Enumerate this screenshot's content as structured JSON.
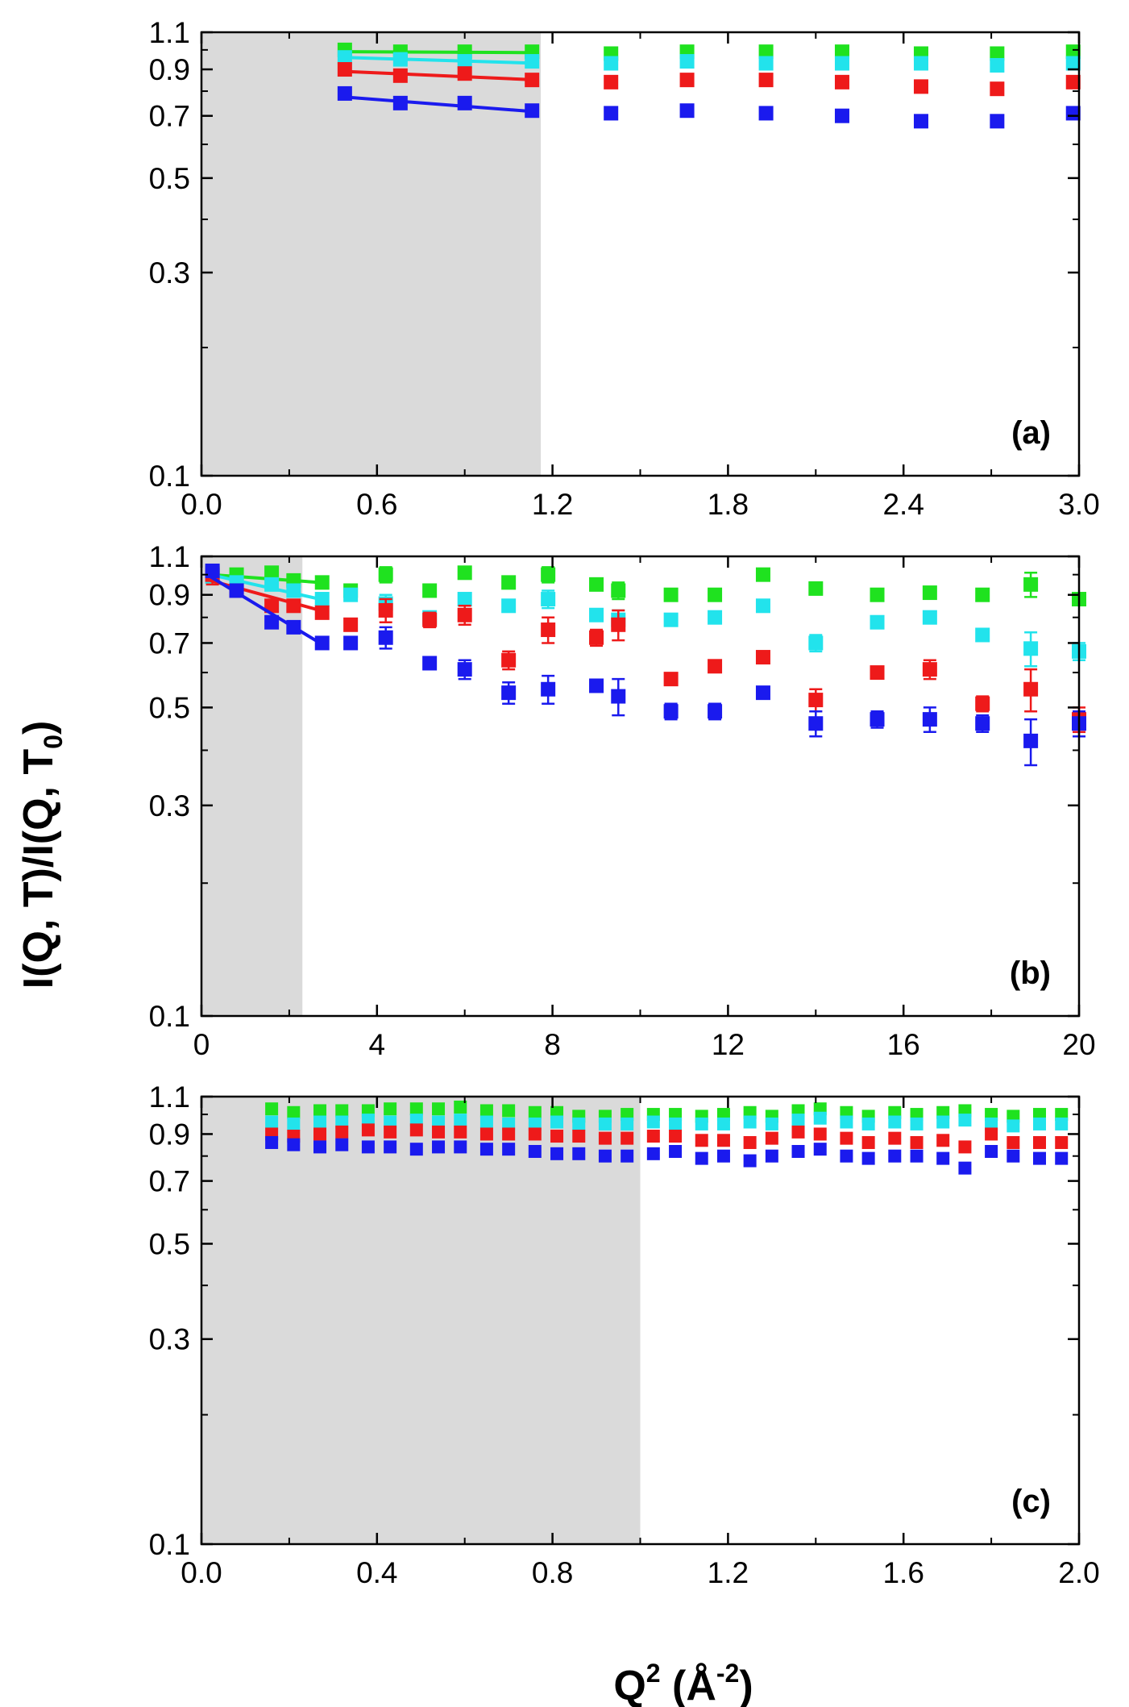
{
  "figure": {
    "ylabel": "I(Q, T)/I(Q, T",
    "ylabel_sub": "0",
    "ylabel_close": ")",
    "xlabel": "Q",
    "xlabel_sup": "2",
    "xlabel_unit_open": " (Å",
    "xlabel_unit_sup": "-2",
    "xlabel_unit_close": ")"
  },
  "colors": {
    "blue": "#1a1aee",
    "red": "#ee1a1a",
    "cyan": "#22e3ec",
    "green": "#1fe21f",
    "shade": "#dadada"
  },
  "chart_data": [
    {
      "type": "scatter",
      "panel_label": "(a)",
      "xlim": [
        0,
        3.0
      ],
      "ylim": [
        0.1,
        1.1
      ],
      "yscale": "log",
      "x_ticks": [
        "0.0",
        "0.6",
        "1.2",
        "1.8",
        "2.4",
        "3.0"
      ],
      "y_ticks": [
        "0.1",
        "0.3",
        "0.5",
        "0.7",
        "0.9",
        "1.1"
      ],
      "shaded_region": [
        0,
        1.16
      ],
      "x": [
        0.49,
        0.68,
        0.9,
        1.13,
        1.4,
        1.66,
        1.93,
        2.19,
        2.46,
        2.72,
        2.98
      ],
      "series": [
        {
          "name": "green",
          "color_key": "green",
          "values": [
            1.0,
            0.99,
            0.99,
            0.99,
            0.98,
            0.99,
            0.99,
            0.99,
            0.98,
            0.98,
            0.99
          ],
          "errors": [
            0.01,
            0.01,
            0.01,
            0.01,
            0.01,
            0.01,
            0.01,
            0.01,
            0.01,
            0.01,
            0.01
          ],
          "fit": [
            [
              0.49,
              0.99
            ],
            [
              1.15,
              0.985
            ]
          ]
        },
        {
          "name": "cyan",
          "color_key": "cyan",
          "values": [
            0.96,
            0.95,
            0.94,
            0.94,
            0.93,
            0.94,
            0.93,
            0.93,
            0.93,
            0.92,
            0.93
          ],
          "errors": [
            0.01,
            0.01,
            0.01,
            0.01,
            0.01,
            0.01,
            0.01,
            0.01,
            0.01,
            0.01,
            0.01
          ],
          "fit": [
            [
              0.49,
              0.96
            ],
            [
              1.15,
              0.93
            ]
          ]
        },
        {
          "name": "red",
          "color_key": "red",
          "values": [
            0.9,
            0.87,
            0.88,
            0.85,
            0.84,
            0.85,
            0.85,
            0.84,
            0.82,
            0.81,
            0.84
          ],
          "errors": [
            0.015,
            0.015,
            0.015,
            0.015,
            0.01,
            0.01,
            0.01,
            0.01,
            0.01,
            0.01,
            0.01
          ],
          "fit": [
            [
              0.49,
              0.89
            ],
            [
              1.15,
              0.85
            ]
          ]
        },
        {
          "name": "blue",
          "color_key": "blue",
          "values": [
            0.79,
            0.75,
            0.75,
            0.72,
            0.71,
            0.72,
            0.71,
            0.7,
            0.68,
            0.68,
            0.71
          ],
          "errors": [
            0.015,
            0.015,
            0.015,
            0.015,
            0.01,
            0.01,
            0.01,
            0.01,
            0.01,
            0.01,
            0.01
          ],
          "fit": [
            [
              0.49,
              0.775
            ],
            [
              1.15,
              0.715
            ]
          ]
        }
      ]
    },
    {
      "type": "scatter",
      "panel_label": "(b)",
      "xlim": [
        0,
        20
      ],
      "ylim": [
        0.1,
        1.1
      ],
      "yscale": "log",
      "x_ticks": [
        "0",
        "4",
        "8",
        "12",
        "16",
        "20"
      ],
      "y_ticks": [
        "0.1",
        "0.3",
        "0.5",
        "0.7",
        "0.9",
        "1.1"
      ],
      "shaded_region": [
        0,
        2.3
      ],
      "x": [
        0.25,
        0.8,
        1.6,
        2.1,
        2.75,
        3.4,
        4.2,
        5.2,
        6.0,
        7.0,
        7.9,
        9.0,
        9.5,
        10.7,
        11.7,
        12.8,
        14.0,
        15.4,
        16.6,
        17.8,
        18.9,
        20.0
      ],
      "series": [
        {
          "name": "green",
          "color_key": "green",
          "values": [
            1.01,
            1.0,
            1.01,
            0.97,
            0.96,
            0.92,
            1.0,
            0.92,
            1.01,
            0.96,
            1.0,
            0.95,
            0.92,
            0.9,
            0.9,
            1.0,
            0.93,
            0.9,
            0.91,
            0.9,
            0.95,
            0.88
          ],
          "errors": [
            0.03,
            0.02,
            0.02,
            0.02,
            0.02,
            0.02,
            0.04,
            0.02,
            0.03,
            0.02,
            0.04,
            0.02,
            0.04,
            0.02,
            0.02,
            0.02,
            0.03,
            0.02,
            0.03,
            0.02,
            0.06,
            0.03
          ],
          "fit": [
            [
              0.2,
              1.0
            ],
            [
              2.7,
              0.96
            ]
          ]
        },
        {
          "name": "cyan",
          "color_key": "cyan",
          "values": [
            0.99,
            0.96,
            0.95,
            0.92,
            0.88,
            0.9,
            0.86,
            0.8,
            0.88,
            0.85,
            0.88,
            0.81,
            0.79,
            0.79,
            0.8,
            0.85,
            0.7,
            0.78,
            0.8,
            0.73,
            0.68,
            0.67
          ],
          "errors": [
            0.03,
            0.02,
            0.02,
            0.02,
            0.02,
            0.02,
            0.04,
            0.02,
            0.03,
            0.02,
            0.04,
            0.02,
            0.04,
            0.02,
            0.02,
            0.02,
            0.03,
            0.02,
            0.03,
            0.02,
            0.06,
            0.03
          ],
          "fit": [
            [
              0.2,
              1.0
            ],
            [
              2.7,
              0.88
            ]
          ]
        },
        {
          "name": "red",
          "color_key": "red",
          "values": [
            1.0,
            0.92,
            0.85,
            0.85,
            0.82,
            0.77,
            0.83,
            0.79,
            0.81,
            0.64,
            0.75,
            0.72,
            0.77,
            0.58,
            0.62,
            0.65,
            0.52,
            0.6,
            0.61,
            0.51,
            0.55,
            0.47
          ],
          "errors": [
            0.05,
            0.03,
            0.03,
            0.02,
            0.02,
            0.02,
            0.05,
            0.03,
            0.04,
            0.03,
            0.05,
            0.03,
            0.06,
            0.02,
            0.02,
            0.02,
            0.03,
            0.02,
            0.03,
            0.02,
            0.06,
            0.03
          ],
          "fit": [
            [
              0.2,
              0.97
            ],
            [
              2.7,
              0.83
            ]
          ]
        },
        {
          "name": "blue",
          "color_key": "blue",
          "values": [
            1.02,
            0.92,
            0.78,
            0.76,
            0.7,
            0.7,
            0.72,
            0.63,
            0.61,
            0.54,
            0.55,
            0.56,
            0.53,
            0.49,
            0.49,
            0.54,
            0.46,
            0.47,
            0.47,
            0.46,
            0.42,
            0.46
          ],
          "errors": [
            0.03,
            0.03,
            0.02,
            0.02,
            0.02,
            0.02,
            0.04,
            0.02,
            0.03,
            0.03,
            0.04,
            0.02,
            0.05,
            0.02,
            0.02,
            0.02,
            0.03,
            0.02,
            0.03,
            0.02,
            0.05,
            0.03
          ],
          "fit": [
            [
              0.2,
              0.99
            ],
            [
              2.7,
              0.7
            ]
          ]
        }
      ]
    },
    {
      "type": "scatter",
      "panel_label": "(c)",
      "xlim": [
        0,
        2.0
      ],
      "ylim": [
        0.1,
        1.1
      ],
      "yscale": "log",
      "x_ticks": [
        "0.0",
        "0.4",
        "0.8",
        "1.2",
        "1.6",
        "2.0"
      ],
      "y_ticks": [
        "0.1",
        "0.3",
        "0.5",
        "0.7",
        "0.9",
        "1.1"
      ],
      "shaded_region": [
        0,
        1.0
      ],
      "x": [
        0.16,
        0.21,
        0.27,
        0.32,
        0.38,
        0.43,
        0.49,
        0.54,
        0.59,
        0.65,
        0.7,
        0.76,
        0.81,
        0.86,
        0.92,
        0.97,
        1.03,
        1.08,
        1.14,
        1.19,
        1.25,
        1.3,
        1.36,
        1.41,
        1.47,
        1.52,
        1.58,
        1.63,
        1.69,
        1.74,
        1.8,
        1.85,
        1.91,
        1.96
      ],
      "series": [
        {
          "name": "green",
          "color_key": "green",
          "values": [
            1.03,
            1.01,
            1.02,
            1.02,
            1.02,
            1.03,
            1.03,
            1.03,
            1.04,
            1.02,
            1.02,
            1.01,
            1.01,
            0.99,
            0.99,
            1.0,
            1.0,
            1.0,
            0.99,
            1.0,
            1.01,
            0.99,
            1.02,
            1.03,
            1.01,
            0.99,
            1.01,
            1.0,
            1.01,
            1.02,
            1.0,
            0.99,
            1.0,
            1.0
          ],
          "errors": [
            0.01,
            0.01,
            0.01,
            0.01,
            0.01,
            0.01,
            0.01,
            0.01,
            0.01,
            0.01,
            0.01,
            0.01,
            0.01,
            0.01,
            0.01,
            0.01,
            0.01,
            0.01,
            0.01,
            0.01,
            0.01,
            0.01,
            0.02,
            0.02,
            0.02,
            0.02,
            0.02,
            0.02,
            0.02,
            0.02,
            0.02,
            0.02,
            0.02,
            0.02
          ]
        },
        {
          "name": "cyan",
          "color_key": "cyan",
          "values": [
            0.96,
            0.95,
            0.96,
            0.96,
            0.97,
            0.96,
            0.97,
            0.96,
            0.97,
            0.96,
            0.95,
            0.95,
            0.96,
            0.95,
            0.95,
            0.95,
            0.96,
            0.95,
            0.95,
            0.95,
            0.96,
            0.95,
            0.97,
            0.98,
            0.96,
            0.95,
            0.96,
            0.95,
            0.96,
            0.97,
            0.95,
            0.94,
            0.95,
            0.95
          ],
          "errors": [
            0.01,
            0.01,
            0.01,
            0.01,
            0.01,
            0.01,
            0.01,
            0.01,
            0.01,
            0.01,
            0.01,
            0.01,
            0.01,
            0.01,
            0.01,
            0.01,
            0.01,
            0.01,
            0.01,
            0.01,
            0.01,
            0.01,
            0.02,
            0.02,
            0.02,
            0.02,
            0.02,
            0.02,
            0.02,
            0.02,
            0.02,
            0.02,
            0.02,
            0.02
          ]
        },
        {
          "name": "red",
          "color_key": "red",
          "values": [
            0.9,
            0.89,
            0.9,
            0.91,
            0.92,
            0.91,
            0.92,
            0.91,
            0.91,
            0.9,
            0.9,
            0.9,
            0.89,
            0.89,
            0.88,
            0.88,
            0.89,
            0.89,
            0.87,
            0.87,
            0.86,
            0.88,
            0.91,
            0.9,
            0.88,
            0.86,
            0.88,
            0.86,
            0.87,
            0.84,
            0.9,
            0.86,
            0.86,
            0.86
          ],
          "errors": [
            0.01,
            0.01,
            0.01,
            0.01,
            0.01,
            0.01,
            0.01,
            0.01,
            0.01,
            0.01,
            0.01,
            0.01,
            0.01,
            0.01,
            0.01,
            0.01,
            0.01,
            0.01,
            0.01,
            0.01,
            0.01,
            0.01,
            0.02,
            0.02,
            0.02,
            0.02,
            0.02,
            0.02,
            0.02,
            0.02,
            0.02,
            0.02,
            0.02,
            0.02
          ]
        },
        {
          "name": "blue",
          "color_key": "blue",
          "values": [
            0.86,
            0.85,
            0.84,
            0.85,
            0.84,
            0.84,
            0.83,
            0.84,
            0.84,
            0.83,
            0.83,
            0.82,
            0.81,
            0.81,
            0.8,
            0.8,
            0.81,
            0.82,
            0.79,
            0.8,
            0.78,
            0.8,
            0.82,
            0.83,
            0.8,
            0.79,
            0.8,
            0.8,
            0.79,
            0.75,
            0.82,
            0.8,
            0.79,
            0.79
          ],
          "errors": [
            0.01,
            0.01,
            0.01,
            0.01,
            0.01,
            0.01,
            0.01,
            0.01,
            0.01,
            0.01,
            0.01,
            0.01,
            0.01,
            0.01,
            0.01,
            0.01,
            0.01,
            0.01,
            0.01,
            0.01,
            0.01,
            0.01,
            0.02,
            0.02,
            0.02,
            0.02,
            0.02,
            0.02,
            0.02,
            0.02,
            0.02,
            0.02,
            0.02,
            0.02
          ]
        }
      ]
    }
  ]
}
